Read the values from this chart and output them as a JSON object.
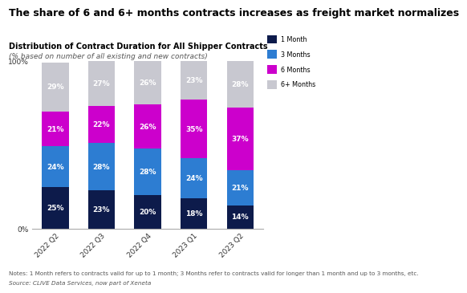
{
  "title": "The share of 6 and 6+ months contracts increases as freight market normalizes",
  "subtitle": "Distribution of Contract Duration for All Shipper Contracts",
  "subtitle2": "(% based on number of all existing and new contracts)",
  "note": "Notes: 1 Month refers to contracts valid for up to 1 month; 3 Months refer to contracts valid for longer than 1 month and up to 3 months, etc.",
  "source": "Source: CLIVE Data Services, now part of Xeneta",
  "categories": [
    "2022 Q2",
    "2022 Q3",
    "2022 Q4",
    "2023 Q1",
    "2023 Q2"
  ],
  "series": [
    {
      "label": "1 Month",
      "color": "#0d1b4b",
      "values": [
        25,
        23,
        20,
        18,
        14
      ]
    },
    {
      "label": "3 Months",
      "color": "#2d7dd2",
      "values": [
        24,
        28,
        28,
        24,
        21
      ]
    },
    {
      "label": "6 Months",
      "color": "#cc00cc",
      "values": [
        21,
        22,
        26,
        35,
        37
      ]
    },
    {
      "label": "6+ Months",
      "color": "#c8c8d0",
      "values": [
        29,
        27,
        26,
        23,
        28
      ]
    }
  ],
  "background_color": "#ffffff",
  "title_fontsize": 9.0,
  "subtitle_fontsize": 7.0,
  "label_fontsize": 6.5,
  "tick_fontsize": 6.5,
  "note_fontsize": 5.2,
  "ylim": [
    0,
    100
  ]
}
